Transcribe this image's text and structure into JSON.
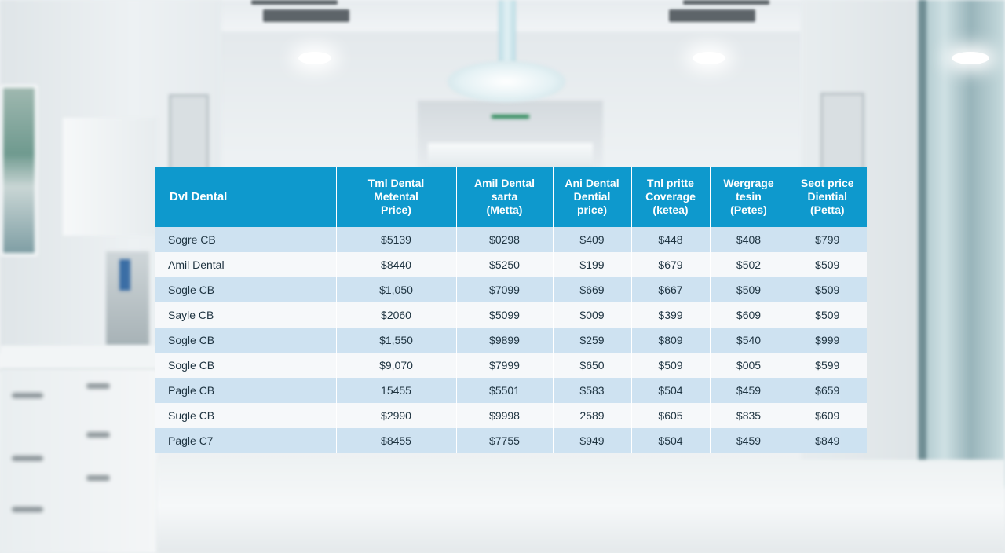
{
  "headers": [
    [
      "Dvl Dental"
    ],
    [
      "Tml Dental",
      "Metental",
      "Price)"
    ],
    [
      "Amil Dental",
      "sarta",
      "(Metta)"
    ],
    [
      "Ani Dental",
      "Dential",
      "price)"
    ],
    [
      "Tnl pritte",
      "Coverage",
      "(ketea)"
    ],
    [
      "Wergrage",
      "tesin",
      "(Petes)"
    ],
    [
      "Seot price",
      "Diential",
      "(Petta)"
    ]
  ],
  "rows": [
    [
      "Sogre CB",
      "$5139",
      "$0298",
      "$409",
      "$448",
      "$408",
      "$799"
    ],
    [
      "Amil Dental",
      "$8440",
      "$5250",
      "$199",
      "$679",
      "$502",
      "$509"
    ],
    [
      "Sogle CB",
      "$1,050",
      "$7099",
      "$669",
      "$667",
      "$509",
      "$509"
    ],
    [
      "Sayle CB",
      "$2060",
      "$5099",
      "$009",
      "$399",
      "$609",
      "$509"
    ],
    [
      "Sogle CB",
      "$1,550",
      "$9899",
      "$259",
      "$809",
      "$540",
      "$999"
    ],
    [
      "Sogle CB",
      "$9,070",
      "$7999",
      "$650",
      "$509",
      "$005",
      "$599"
    ],
    [
      "Pagle CB",
      "15455",
      "$5501",
      "$583",
      "$504",
      "$459",
      "$659"
    ],
    [
      "Sugle CB",
      "$2990",
      "$9998",
      "2589",
      "$605",
      "$835",
      "$609"
    ],
    [
      "Pagle C7",
      "$8455",
      "$7755",
      "$949",
      "$504",
      "$459",
      "$849"
    ]
  ],
  "colors": {
    "header_bg": "#0e99cd",
    "row_odd": "#cbe0f0",
    "row_even": "#f6f8fa"
  }
}
